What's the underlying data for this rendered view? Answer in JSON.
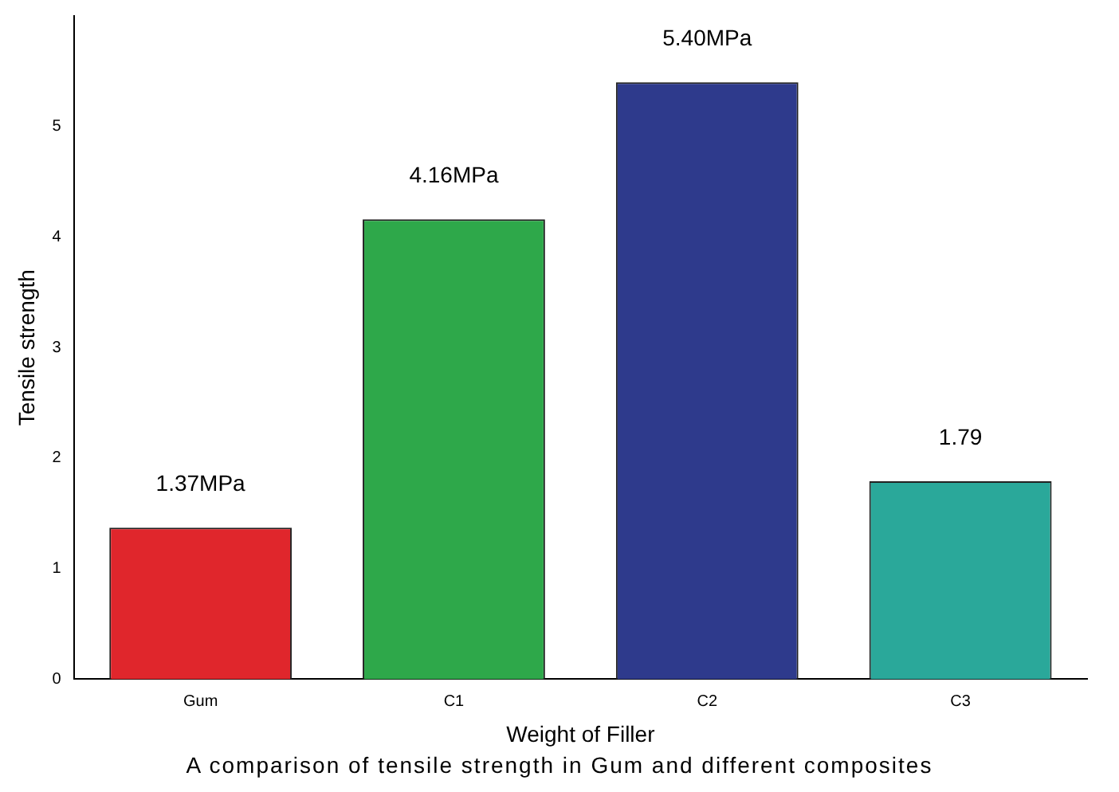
{
  "chart_data": {
    "type": "bar",
    "xlabel": "Weight of Filler",
    "ylabel": "Tensile strength",
    "categories": [
      "Gum",
      "C1",
      "C2",
      "C3"
    ],
    "values": [
      1.37,
      4.16,
      5.4,
      1.79
    ],
    "colors": [
      "#e0262c",
      "#2ea84a",
      "#2e3a8c",
      "#2aa89a"
    ],
    "value_labels": [
      "1.37MPa",
      "4.16MPa",
      "5.40MPa",
      "1.79"
    ],
    "ylim": [
      0,
      6
    ],
    "yticks": [
      0,
      1,
      2,
      3,
      4,
      5
    ],
    "grid": false,
    "legend": false,
    "annotations": [
      "A comparison of tensile strength in Gum and different composites"
    ]
  }
}
